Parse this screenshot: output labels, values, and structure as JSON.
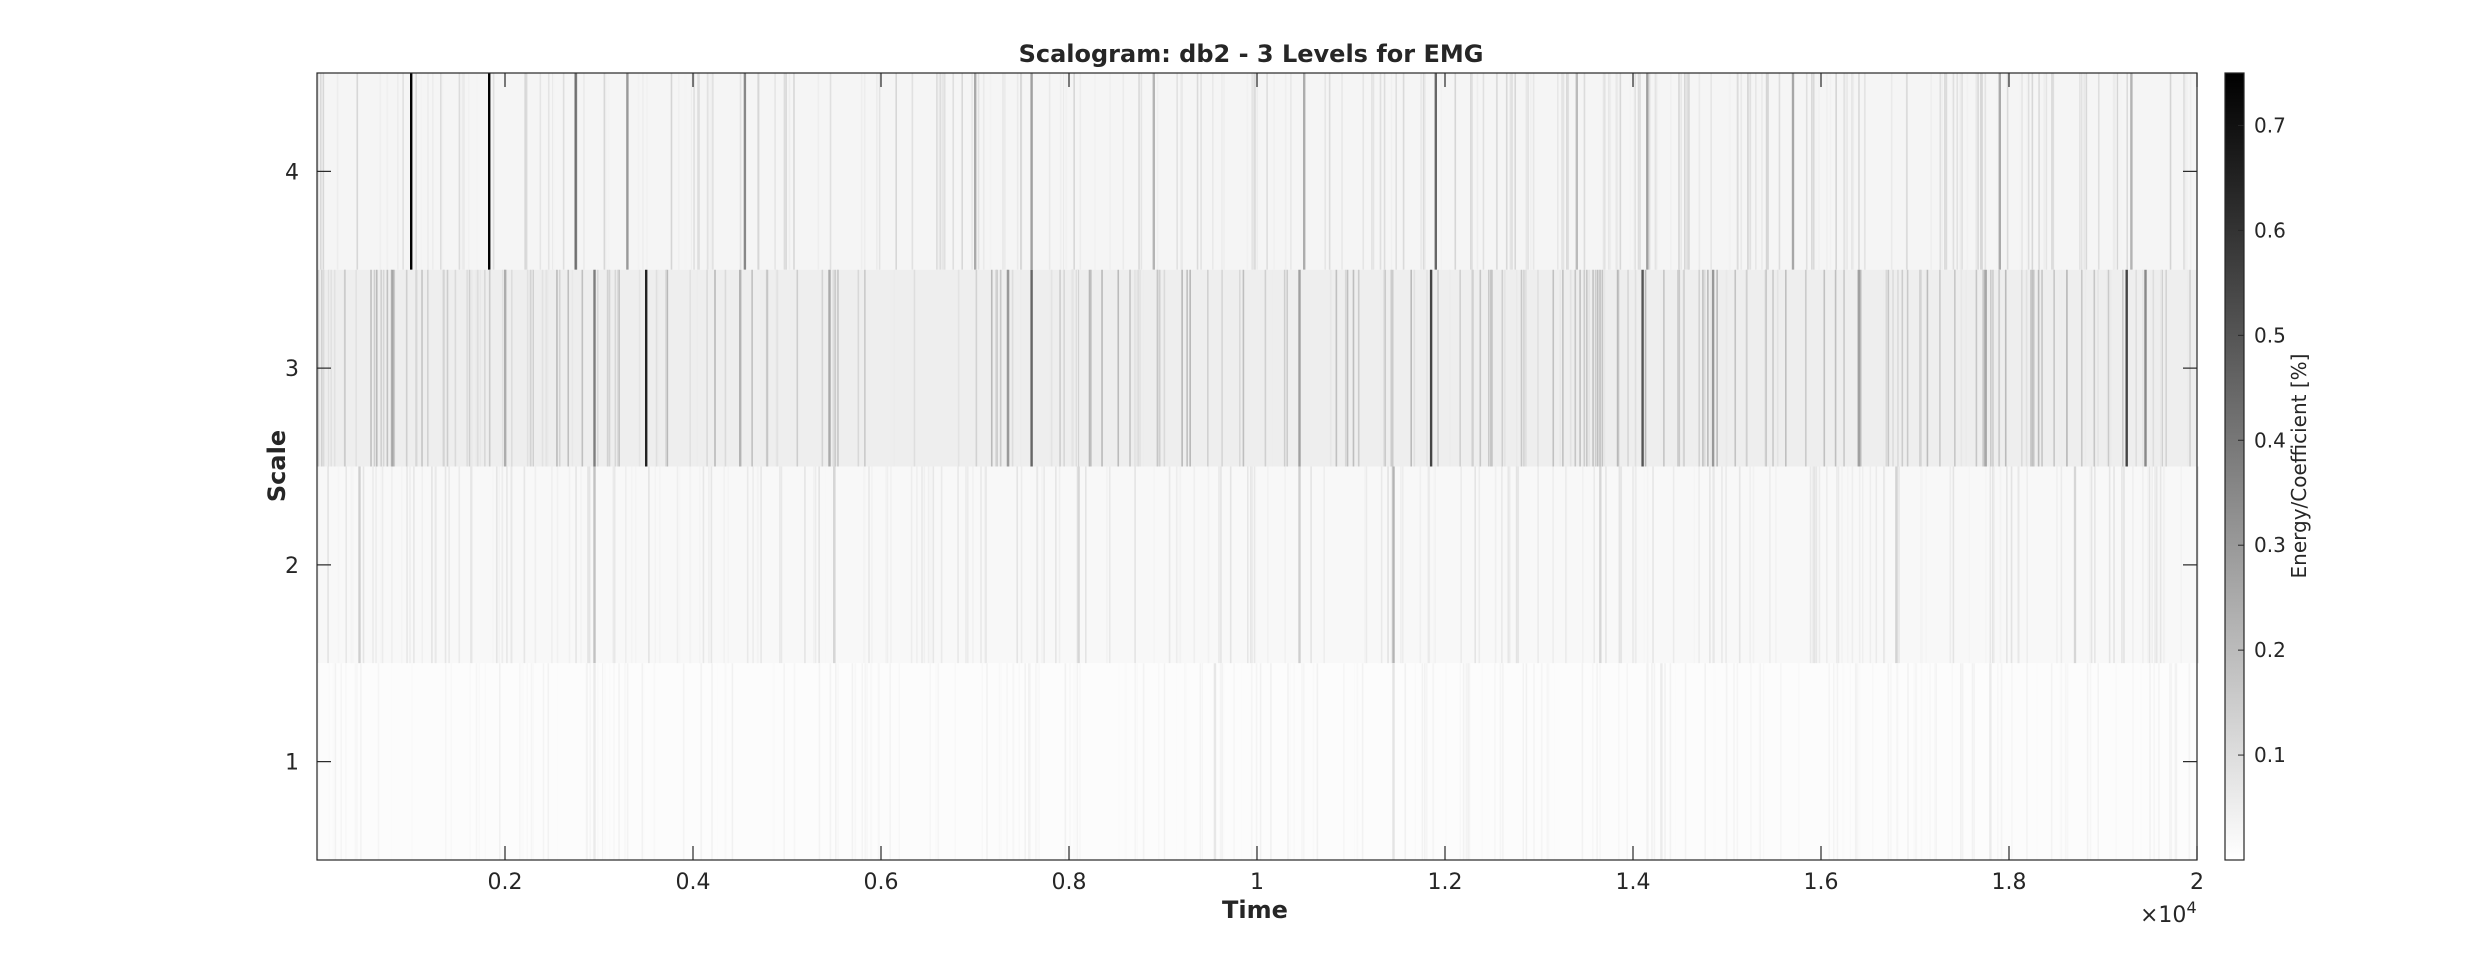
{
  "chart_data": {
    "type": "heatmap",
    "title": "Scalogram: db2 - 3 Levels for EMG",
    "xlabel": "Time",
    "ylabel": "Scale",
    "x_exponent_label": "×10",
    "x_exponent_power": "4",
    "xlim": [
      0,
      20000
    ],
    "ylim": [
      0.5,
      4.5
    ],
    "x_ticks": [
      {
        "value": 2000,
        "label": "0.2"
      },
      {
        "value": 4000,
        "label": "0.4"
      },
      {
        "value": 6000,
        "label": "0.6"
      },
      {
        "value": 8000,
        "label": "0.8"
      },
      {
        "value": 10000,
        "label": "1"
      },
      {
        "value": 12000,
        "label": "1.2"
      },
      {
        "value": 14000,
        "label": "1.4"
      },
      {
        "value": 16000,
        "label": "1.6"
      },
      {
        "value": 18000,
        "label": "1.8"
      },
      {
        "value": 20000,
        "label": "2"
      }
    ],
    "y_ticks": [
      {
        "value": 1,
        "label": "1"
      },
      {
        "value": 2,
        "label": "2"
      },
      {
        "value": 3,
        "label": "3"
      },
      {
        "value": 4,
        "label": "4"
      }
    ],
    "colormap": {
      "low": "#ffffff",
      "high": "#000000"
    },
    "colorbar": {
      "label": "Energy/Coefficient [%]",
      "range": [
        0,
        0.75
      ],
      "ticks": [
        {
          "value": 0.1,
          "label": "0.1"
        },
        {
          "value": 0.2,
          "label": "0.2"
        },
        {
          "value": 0.3,
          "label": "0.3"
        },
        {
          "value": 0.4,
          "label": "0.4"
        },
        {
          "value": 0.5,
          "label": "0.5"
        },
        {
          "value": 0.6,
          "label": "0.6"
        },
        {
          "value": 0.7,
          "label": "0.7"
        }
      ]
    },
    "rows": [
      {
        "scale": 4,
        "background": 0.03,
        "spikes": [
          {
            "x": 1000,
            "v": 0.74
          },
          {
            "x": 1830,
            "v": 0.75
          },
          {
            "x": 2750,
            "v": 0.42
          },
          {
            "x": 3300,
            "v": 0.3
          },
          {
            "x": 4550,
            "v": 0.35
          },
          {
            "x": 7000,
            "v": 0.25
          },
          {
            "x": 7600,
            "v": 0.28
          },
          {
            "x": 8900,
            "v": 0.22
          },
          {
            "x": 10500,
            "v": 0.24
          },
          {
            "x": 11900,
            "v": 0.45
          },
          {
            "x": 13400,
            "v": 0.2
          },
          {
            "x": 14150,
            "v": 0.28
          },
          {
            "x": 15700,
            "v": 0.26
          },
          {
            "x": 17900,
            "v": 0.25
          },
          {
            "x": 19300,
            "v": 0.22
          }
        ]
      },
      {
        "scale": 3,
        "background": 0.05,
        "spikes": [
          {
            "x": 800,
            "v": 0.26
          },
          {
            "x": 2000,
            "v": 0.24
          },
          {
            "x": 2950,
            "v": 0.38
          },
          {
            "x": 3500,
            "v": 0.65
          },
          {
            "x": 4500,
            "v": 0.22
          },
          {
            "x": 5450,
            "v": 0.25
          },
          {
            "x": 7350,
            "v": 0.3
          },
          {
            "x": 7600,
            "v": 0.45
          },
          {
            "x": 10450,
            "v": 0.28
          },
          {
            "x": 11850,
            "v": 0.55
          },
          {
            "x": 14100,
            "v": 0.5
          },
          {
            "x": 14850,
            "v": 0.3
          },
          {
            "x": 16400,
            "v": 0.28
          },
          {
            "x": 17750,
            "v": 0.26
          },
          {
            "x": 19250,
            "v": 0.55
          },
          {
            "x": 19450,
            "v": 0.35
          }
        ]
      },
      {
        "scale": 2,
        "background": 0.02,
        "spikes": [
          {
            "x": 450,
            "v": 0.14
          },
          {
            "x": 2950,
            "v": 0.18
          },
          {
            "x": 5500,
            "v": 0.12
          },
          {
            "x": 8100,
            "v": 0.12
          },
          {
            "x": 10450,
            "v": 0.14
          },
          {
            "x": 11450,
            "v": 0.22
          },
          {
            "x": 13650,
            "v": 0.12
          },
          {
            "x": 16800,
            "v": 0.13
          },
          {
            "x": 18700,
            "v": 0.12
          }
        ]
      },
      {
        "scale": 1,
        "background": 0.01,
        "spikes": [
          {
            "x": 2950,
            "v": 0.06
          },
          {
            "x": 9550,
            "v": 0.07
          },
          {
            "x": 11450,
            "v": 0.08
          },
          {
            "x": 14300,
            "v": 0.06
          },
          {
            "x": 17800,
            "v": 0.06
          }
        ]
      }
    ]
  }
}
